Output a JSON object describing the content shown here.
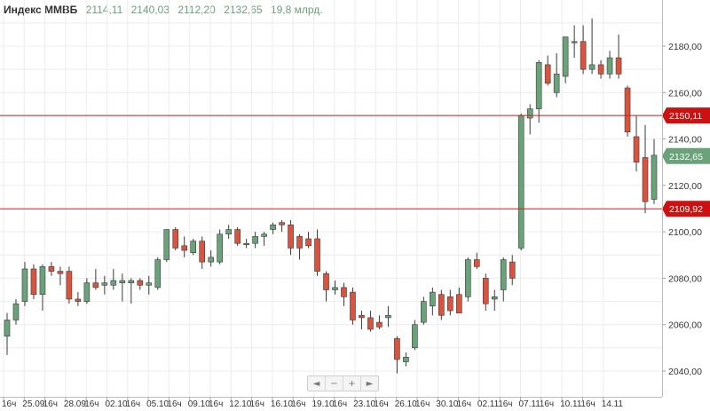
{
  "legend": {
    "title": "Индекс ММВБ",
    "open": "2114,11",
    "high": "2140,03",
    "low": "2112,20",
    "close": "2132,65",
    "volume": "19,8 млрд."
  },
  "navigator": {
    "prev": "◄",
    "zoom_out": "−",
    "zoom_in": "+",
    "next": "►"
  },
  "colors": {
    "up": "#6aa27a",
    "down": "#d9543f",
    "level_line": "#cc2222",
    "last_price_label": "#6aa27a",
    "level_label": "#cc1111"
  },
  "chart_data": {
    "type": "candlestick",
    "y_ticks": [
      "2040,00",
      "2060,00",
      "2080,00",
      "2100,00",
      "2120,00",
      "2140,00",
      "2160,00",
      "2180,00"
    ],
    "y_tick_values": [
      2040,
      2060,
      2080,
      2100,
      2120,
      2140,
      2160,
      2180
    ],
    "x_tick_labels": [
      "16ч",
      "25.09",
      "16ч",
      "28.09",
      "16ч",
      "02.10",
      "16ч",
      "05.10",
      "16ч",
      "09.10",
      "16ч",
      "12.10",
      "16ч",
      "16.10",
      "16ч",
      "19.10",
      "16ч",
      "23.10",
      "16ч",
      "26.10",
      "16ч",
      "30.10",
      "16ч",
      "02.11",
      "16ч",
      "07.11",
      "16ч",
      "10.11",
      "16ч",
      "14.11"
    ],
    "ylim": [
      2035,
      2195
    ],
    "grid": true,
    "horizontal_levels": [
      {
        "value": 2150.11,
        "label": "2150,11"
      },
      {
        "value": 2109.92,
        "label": "2109,92"
      }
    ],
    "last_price": {
      "value": 2132.65,
      "label": "2132,65"
    },
    "candles": [
      {
        "o": 2055,
        "h": 2065,
        "l": 2047,
        "c": 2062
      },
      {
        "o": 2062,
        "h": 2071,
        "l": 2060,
        "c": 2069
      },
      {
        "o": 2070,
        "h": 2087,
        "l": 2068,
        "c": 2084
      },
      {
        "o": 2084,
        "h": 2086,
        "l": 2071,
        "c": 2073
      },
      {
        "o": 2073,
        "h": 2086,
        "l": 2066,
        "c": 2085
      },
      {
        "o": 2085,
        "h": 2087,
        "l": 2081,
        "c": 2083
      },
      {
        "o": 2083,
        "h": 2085,
        "l": 2077,
        "c": 2082
      },
      {
        "o": 2083,
        "h": 2085,
        "l": 2069,
        "c": 2071
      },
      {
        "o": 2071,
        "h": 2074,
        "l": 2068,
        "c": 2070
      },
      {
        "o": 2070,
        "h": 2080,
        "l": 2069,
        "c": 2078
      },
      {
        "o": 2078,
        "h": 2084,
        "l": 2075,
        "c": 2076
      },
      {
        "o": 2077,
        "h": 2081,
        "l": 2073,
        "c": 2078
      },
      {
        "o": 2077,
        "h": 2084,
        "l": 2075,
        "c": 2079
      },
      {
        "o": 2078,
        "h": 2082,
        "l": 2070,
        "c": 2079
      },
      {
        "o": 2078,
        "h": 2080,
        "l": 2069,
        "c": 2079
      },
      {
        "o": 2079,
        "h": 2080,
        "l": 2075,
        "c": 2077
      },
      {
        "o": 2077,
        "h": 2081,
        "l": 2073,
        "c": 2078
      },
      {
        "o": 2076,
        "h": 2089,
        "l": 2075,
        "c": 2088
      },
      {
        "o": 2088,
        "h": 2101,
        "l": 2087,
        "c": 2101
      },
      {
        "o": 2101,
        "h": 2102,
        "l": 2092,
        "c": 2093
      },
      {
        "o": 2094,
        "h": 2098,
        "l": 2089,
        "c": 2092
      },
      {
        "o": 2091,
        "h": 2097,
        "l": 2090,
        "c": 2096
      },
      {
        "o": 2096,
        "h": 2098,
        "l": 2084,
        "c": 2087
      },
      {
        "o": 2087,
        "h": 2092,
        "l": 2085,
        "c": 2089
      },
      {
        "o": 2087,
        "h": 2101,
        "l": 2086,
        "c": 2099
      },
      {
        "o": 2099,
        "h": 2103,
        "l": 2097,
        "c": 2101
      },
      {
        "o": 2101,
        "h": 2102,
        "l": 2094,
        "c": 2095
      },
      {
        "o": 2095,
        "h": 2097,
        "l": 2093,
        "c": 2095
      },
      {
        "o": 2095,
        "h": 2100,
        "l": 2093,
        "c": 2098
      },
      {
        "o": 2098,
        "h": 2100,
        "l": 2094,
        "c": 2099
      },
      {
        "o": 2101,
        "h": 2104,
        "l": 2099,
        "c": 2103
      },
      {
        "o": 2104,
        "h": 2105,
        "l": 2100,
        "c": 2103
      },
      {
        "o": 2103,
        "h": 2105,
        "l": 2090,
        "c": 2093
      },
      {
        "o": 2098,
        "h": 2099,
        "l": 2088,
        "c": 2093
      },
      {
        "o": 2097,
        "h": 2100,
        "l": 2093,
        "c": 2094
      },
      {
        "o": 2097,
        "h": 2101,
        "l": 2081,
        "c": 2083
      },
      {
        "o": 2082,
        "h": 2083,
        "l": 2070,
        "c": 2075
      },
      {
        "o": 2075,
        "h": 2079,
        "l": 2073,
        "c": 2076
      },
      {
        "o": 2076,
        "h": 2078,
        "l": 2068,
        "c": 2072
      },
      {
        "o": 2074,
        "h": 2076,
        "l": 2060,
        "c": 2062
      },
      {
        "o": 2064,
        "h": 2066,
        "l": 2058,
        "c": 2063
      },
      {
        "o": 2063,
        "h": 2066,
        "l": 2057,
        "c": 2058
      },
      {
        "o": 2061,
        "h": 2064,
        "l": 2058,
        "c": 2059
      },
      {
        "o": 2063,
        "h": 2068,
        "l": 2059,
        "c": 2064
      },
      {
        "o": 2054,
        "h": 2055,
        "l": 2039,
        "c": 2045
      },
      {
        "o": 2044,
        "h": 2048,
        "l": 2042,
        "c": 2046
      },
      {
        "o": 2050,
        "h": 2062,
        "l": 2049,
        "c": 2060
      },
      {
        "o": 2061,
        "h": 2072,
        "l": 2060,
        "c": 2070
      },
      {
        "o": 2068,
        "h": 2076,
        "l": 2064,
        "c": 2074
      },
      {
        "o": 2073,
        "h": 2075,
        "l": 2062,
        "c": 2064
      },
      {
        "o": 2072,
        "h": 2075,
        "l": 2064,
        "c": 2066
      },
      {
        "o": 2073,
        "h": 2076,
        "l": 2065,
        "c": 2065
      },
      {
        "o": 2072,
        "h": 2089,
        "l": 2070,
        "c": 2088
      },
      {
        "o": 2088,
        "h": 2091,
        "l": 2084,
        "c": 2085
      },
      {
        "o": 2080,
        "h": 2082,
        "l": 2066,
        "c": 2069
      },
      {
        "o": 2071,
        "h": 2075,
        "l": 2066,
        "c": 2072
      },
      {
        "o": 2075,
        "h": 2089,
        "l": 2070,
        "c": 2088
      },
      {
        "o": 2087,
        "h": 2090,
        "l": 2077,
        "c": 2080
      },
      {
        "o": 2093,
        "h": 2151,
        "l": 2092,
        "c": 2150
      },
      {
        "o": 2149,
        "h": 2155,
        "l": 2142,
        "c": 2153
      },
      {
        "o": 2153,
        "h": 2174,
        "l": 2147,
        "c": 2173
      },
      {
        "o": 2172,
        "h": 2176,
        "l": 2163,
        "c": 2164
      },
      {
        "o": 2160,
        "h": 2177,
        "l": 2158,
        "c": 2168
      },
      {
        "o": 2167,
        "h": 2184,
        "l": 2164,
        "c": 2184
      },
      {
        "o": 2182,
        "h": 2189,
        "l": 2175,
        "c": 2182
      },
      {
        "o": 2182,
        "h": 2189,
        "l": 2168,
        "c": 2170
      },
      {
        "o": 2170,
        "h": 2192,
        "l": 2168,
        "c": 2172
      },
      {
        "o": 2172,
        "h": 2174,
        "l": 2166,
        "c": 2168
      },
      {
        "o": 2168,
        "h": 2178,
        "l": 2166,
        "c": 2175
      },
      {
        "o": 2175,
        "h": 2185,
        "l": 2166,
        "c": 2168
      },
      {
        "o": 2162,
        "h": 2163,
        "l": 2141,
        "c": 2143
      },
      {
        "o": 2141,
        "h": 2150,
        "l": 2126,
        "c": 2130
      },
      {
        "o": 2132,
        "h": 2146,
        "l": 2108,
        "c": 2113
      },
      {
        "o": 2114,
        "h": 2140,
        "l": 2112,
        "c": 2133
      }
    ]
  }
}
